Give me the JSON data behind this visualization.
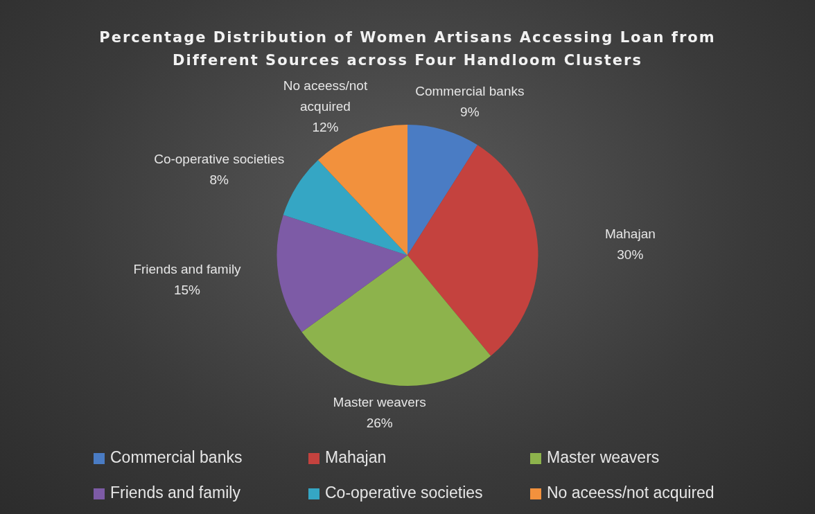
{
  "chart_data": {
    "type": "pie",
    "title": "Percentage Distribution of Women Artisans Accessing Loan from Different Sources across Four Handloom Clusters",
    "categories": [
      "Commercial banks",
      "Mahajan",
      "Master weavers",
      "Friends and family",
      "Co-operative societies",
      "No aceess/not acquired"
    ],
    "values": [
      9,
      30,
      26,
      15,
      8,
      12
    ],
    "colors": [
      "#4a7cc4",
      "#c4423e",
      "#8db34c",
      "#7d5ba6",
      "#35a6c4",
      "#f2913d"
    ],
    "value_labels": [
      "9%",
      "30%",
      "26%",
      "15%",
      "8%",
      "12%"
    ],
    "legend": "bottom"
  }
}
